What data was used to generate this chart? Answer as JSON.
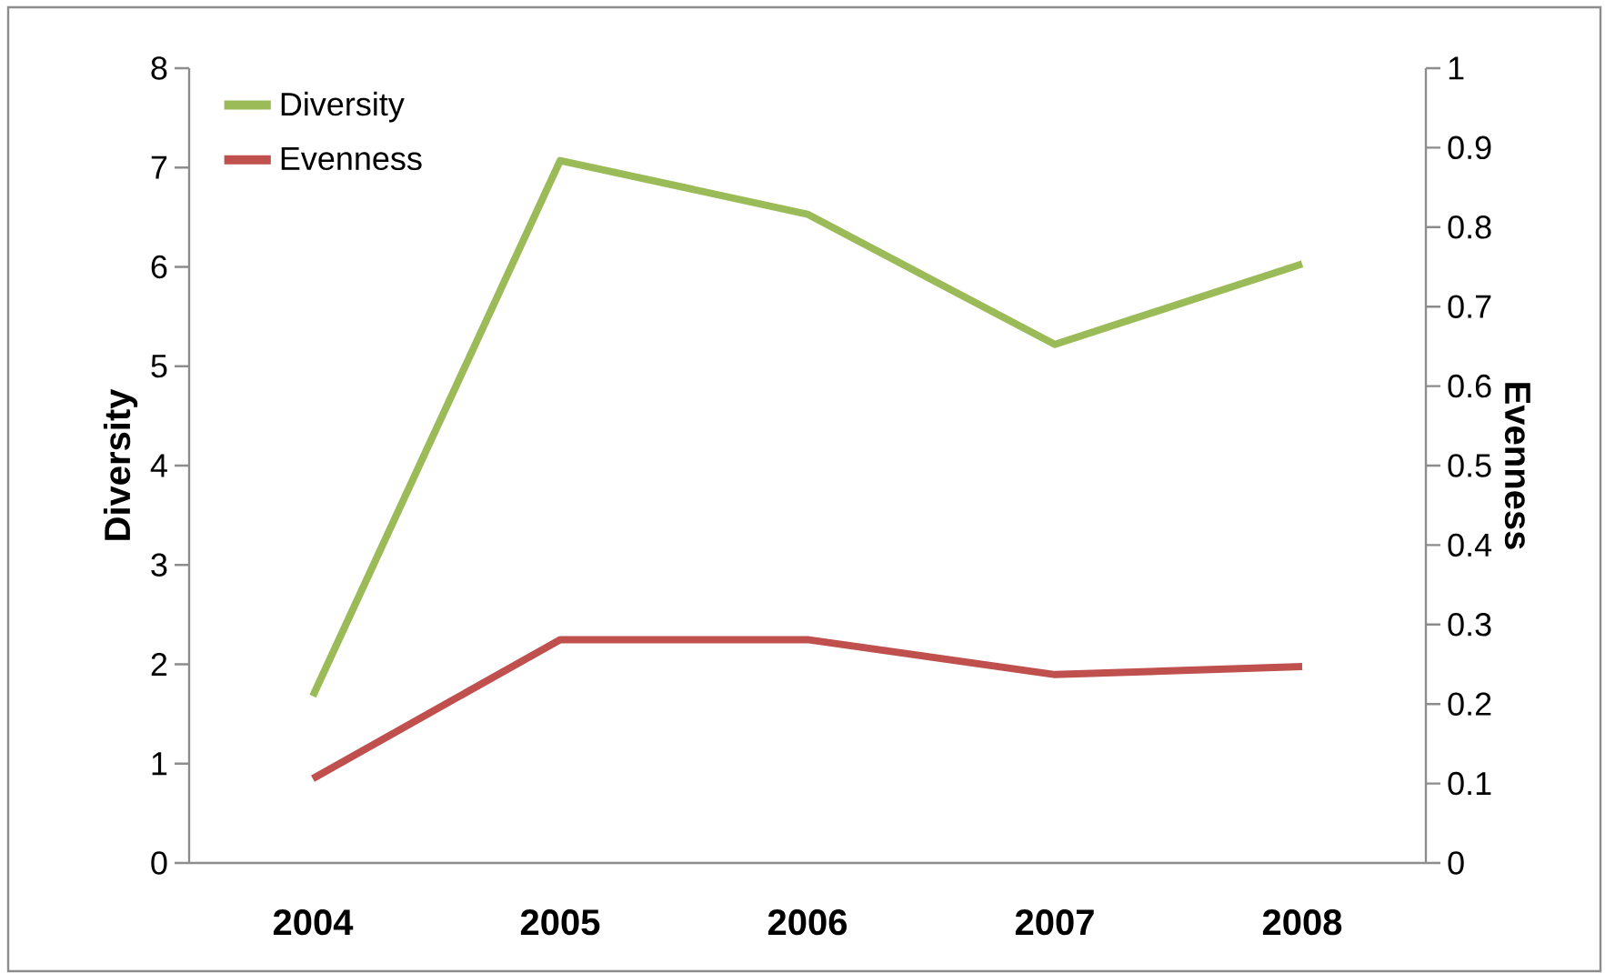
{
  "chart_data": {
    "type": "line",
    "categories": [
      "2004",
      "2005",
      "2006",
      "2007",
      "2008"
    ],
    "ylabel": "Diversity",
    "y2label": "Evenness",
    "series": [
      {
        "name": "Diversity",
        "color": "#9bbb59",
        "values": [
          1.68,
          7.07,
          6.53,
          5.22,
          6.03
        ]
      },
      {
        "name": "Evenness",
        "color": "#c0504d",
        "axis": "y2",
        "values": [
          0.106,
          0.281,
          0.281,
          0.237,
          0.247
        ]
      }
    ],
    "ylim": [
      0,
      8
    ],
    "yticks": [
      0,
      1,
      2,
      3,
      4,
      5,
      6,
      7,
      8
    ],
    "y2lim": [
      0,
      1
    ],
    "y2ticks": [
      0,
      0.1,
      0.2,
      0.3,
      0.4,
      0.5,
      0.6,
      0.7,
      0.8,
      0.9,
      1
    ],
    "legend": "top left",
    "marker": "none",
    "line_style": "solid",
    "grid": false
  }
}
